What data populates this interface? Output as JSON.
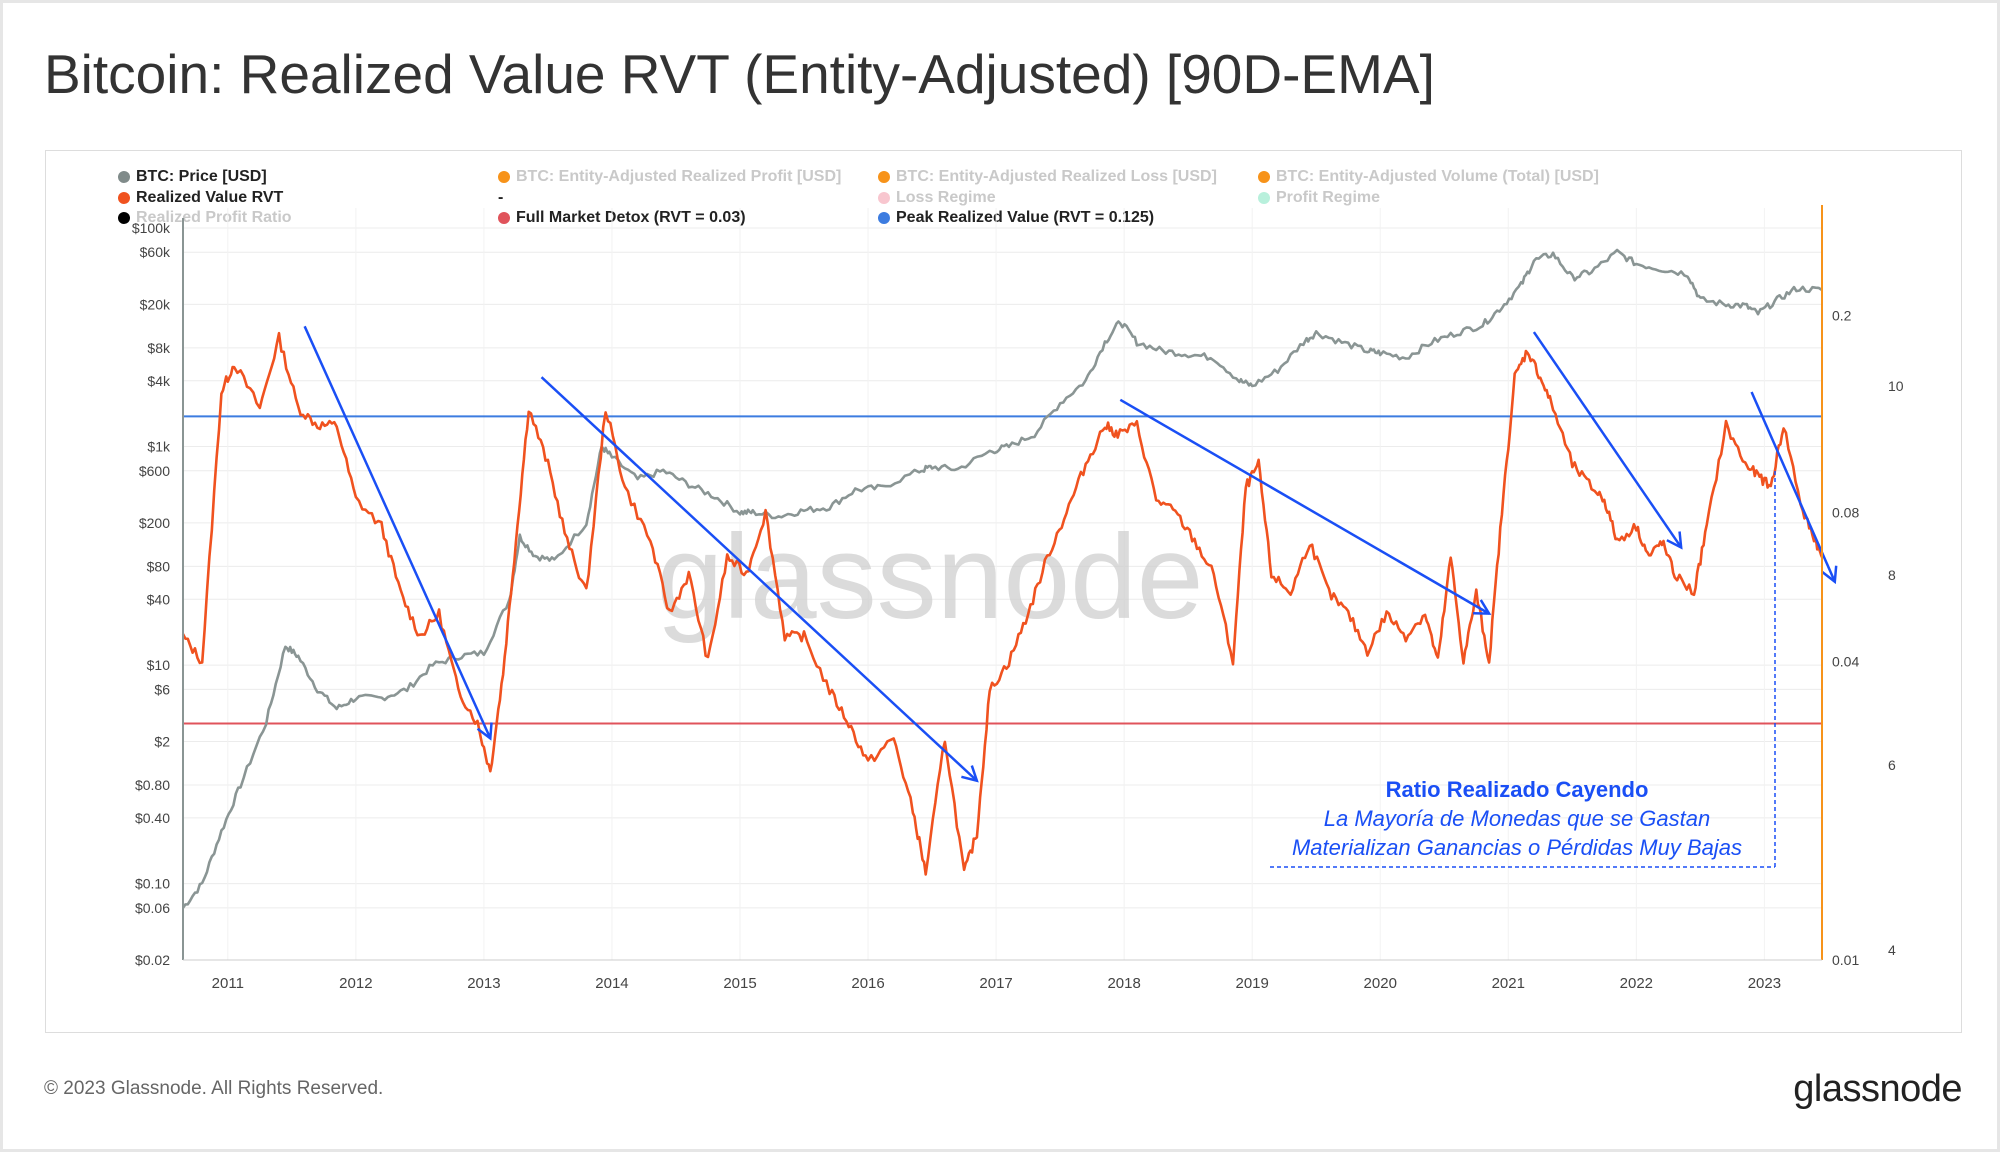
{
  "title": "Bitcoin: Realized Value RVT (Entity-Adjusted) [90D-EMA]",
  "legend": [
    {
      "label": "BTC: Price [USD]",
      "color": "#808b8a",
      "faded": false
    },
    {
      "label": "BTC: Entity-Adjusted Realized Profit [USD]",
      "color": "#f7931a",
      "faded": true
    },
    {
      "label": "BTC: Entity-Adjusted Realized Loss [USD]",
      "color": "#f7931a",
      "faded": true
    },
    {
      "label": "BTC: Entity-Adjusted Volume (Total) [USD]",
      "color": "#f7931a",
      "faded": true
    },
    {
      "label": "Realized Value RVT",
      "color": "#f0521f",
      "faded": false
    },
    {
      "label": "-",
      "color": "",
      "faded": false
    },
    {
      "label": "Loss Regime",
      "color": "#f8c6cf",
      "faded": true
    },
    {
      "label": "Profit Regime",
      "color": "#b8f0dc",
      "faded": true
    },
    {
      "label": "Realized Profit Ratio",
      "color": "#000000",
      "faded": true
    },
    {
      "label": "Full Market Detox (RVT = 0.03)",
      "color": "#e0535b",
      "faded": false
    },
    {
      "label": "Peak Realized Value (RVT = 0.125)",
      "color": "#3c7ce0",
      "faded": false
    }
  ],
  "watermark": "glassnode",
  "annotation": {
    "heading": "Ratio Realizado Cayendo",
    "line1": "La Mayoría de Monedas que se Gastan",
    "line2": "Materializan Ganancias o Pérdidas Muy Bajas"
  },
  "footer": {
    "copyright": "© 2023 Glassnode. All Rights Reserved.",
    "logo": "glassnode"
  },
  "colors": {
    "price": "#8a9594",
    "rvt": "#f0521f",
    "detox": "#e0535b",
    "peak": "#3c7ce0",
    "arrow": "#1a4ff5",
    "right_axis": "#f7931a",
    "annotation": "#1a4ff5"
  },
  "chart_data": {
    "type": "line",
    "x_ticks": [
      "2011",
      "2012",
      "2013",
      "2014",
      "2015",
      "2016",
      "2017",
      "2018",
      "2019",
      "2020",
      "2021",
      "2022",
      "2023"
    ],
    "x_range": [
      2010.65,
      2023.45
    ],
    "left_axis": {
      "label": "BTC: Price [USD]",
      "scale": "log",
      "range": [
        0.02,
        100000
      ],
      "ticks": [
        "$100k",
        "$60k",
        "$20k",
        "$8k",
        "$4k",
        "$1k",
        "$600",
        "$200",
        "$80",
        "$40",
        "$10",
        "$6",
        "$2",
        "$0.80",
        "$0.40",
        "$0.10",
        "$0.06",
        "$0.02"
      ],
      "tick_values": [
        100000,
        60000,
        20000,
        8000,
        4000,
        1000,
        600,
        200,
        80,
        40,
        10,
        6,
        2,
        0.8,
        0.4,
        0.1,
        0.06,
        0.02
      ]
    },
    "right_axis_rvt": {
      "label": "Realized Value RVT",
      "scale": "log",
      "range": [
        0.01,
        0.3
      ],
      "ticks": [
        "0.2",
        "0.08",
        "0.04",
        "0.01"
      ],
      "tick_values": [
        0.2,
        0.08,
        0.04,
        0.01
      ]
    },
    "right_axis_volume": {
      "ticks": [
        "10",
        "8",
        "6",
        "4"
      ]
    },
    "reference_lines": [
      {
        "name": "Full Market Detox",
        "rvt": 0.03
      },
      {
        "name": "Peak Realized Value",
        "rvt": 0.125
      }
    ],
    "series": [
      {
        "name": "BTC: Price [USD]",
        "x": [
          2010.65,
          2010.8,
          2010.95,
          2011.1,
          2011.3,
          2011.45,
          2011.55,
          2011.7,
          2011.85,
          2012.0,
          2012.2,
          2012.4,
          2012.6,
          2012.8,
          2013.0,
          2013.2,
          2013.28,
          2013.4,
          2013.55,
          2013.8,
          2013.92,
          2014.0,
          2014.2,
          2014.4,
          2014.6,
          2014.8,
          2015.0,
          2015.1,
          2015.3,
          2015.5,
          2015.7,
          2015.9,
          2016.1,
          2016.4,
          2016.5,
          2016.7,
          2016.95,
          2017.1,
          2017.3,
          2017.5,
          2017.7,
          2017.85,
          2017.97,
          2018.1,
          2018.3,
          2018.5,
          2018.7,
          2018.9,
          2019.0,
          2019.2,
          2019.4,
          2019.5,
          2019.7,
          2019.9,
          2020.0,
          2020.2,
          2020.4,
          2020.6,
          2020.8,
          2020.95,
          2021.1,
          2021.2,
          2021.35,
          2021.5,
          2021.65,
          2021.85,
          2022.0,
          2022.2,
          2022.4,
          2022.5,
          2022.7,
          2022.85,
          2022.95,
          2023.1,
          2023.25,
          2023.45
        ],
        "values": [
          0.06,
          0.1,
          0.3,
          0.8,
          3,
          15,
          12,
          6,
          4,
          5,
          5,
          6,
          10,
          12,
          13,
          40,
          150,
          100,
          90,
          200,
          1000,
          800,
          500,
          600,
          450,
          350,
          250,
          250,
          230,
          260,
          280,
          400,
          420,
          600,
          650,
          620,
          900,
          1000,
          1300,
          2500,
          4000,
          9000,
          14000,
          9000,
          7500,
          7000,
          6500,
          4000,
          3600,
          5000,
          9000,
          11000,
          9000,
          7500,
          7200,
          6500,
          9000,
          11000,
          13000,
          19000,
          30000,
          50000,
          58000,
          35000,
          40000,
          60000,
          47000,
          42000,
          38000,
          22000,
          20000,
          19500,
          16500,
          22000,
          28000,
          27000
        ]
      },
      {
        "name": "Realized Value RVT",
        "x": [
          2010.65,
          2010.8,
          2010.95,
          2011.05,
          2011.25,
          2011.4,
          2011.55,
          2011.7,
          2011.85,
          2012.0,
          2012.2,
          2012.35,
          2012.5,
          2012.65,
          2012.8,
          2012.95,
          2013.05,
          2013.15,
          2013.25,
          2013.35,
          2013.5,
          2013.65,
          2013.8,
          2013.95,
          2014.1,
          2014.3,
          2014.45,
          2014.6,
          2014.75,
          2014.9,
          2015.05,
          2015.2,
          2015.35,
          2015.5,
          2015.7,
          2015.85,
          2016.0,
          2016.2,
          2016.35,
          2016.45,
          2016.6,
          2016.75,
          2016.85,
          2016.95,
          2017.1,
          2017.25,
          2017.4,
          2017.55,
          2017.7,
          2017.85,
          2017.95,
          2018.1,
          2018.25,
          2018.4,
          2018.55,
          2018.7,
          2018.85,
          2018.95,
          2019.05,
          2019.15,
          2019.3,
          2019.45,
          2019.6,
          2019.75,
          2019.9,
          2020.05,
          2020.2,
          2020.35,
          2020.45,
          2020.55,
          2020.65,
          2020.75,
          2020.85,
          2020.95,
          2021.05,
          2021.15,
          2021.25,
          2021.35,
          2021.5,
          2021.65,
          2021.75,
          2021.85,
          2022.0,
          2022.1,
          2022.2,
          2022.3,
          2022.45,
          2022.55,
          2022.7,
          2022.85,
          2022.95,
          2023.05,
          2023.15,
          2023.3,
          2023.4,
          2023.45
        ],
        "values": [
          0.045,
          0.04,
          0.14,
          0.16,
          0.13,
          0.18,
          0.13,
          0.12,
          0.12,
          0.085,
          0.075,
          0.055,
          0.045,
          0.05,
          0.035,
          0.03,
          0.024,
          0.038,
          0.07,
          0.13,
          0.1,
          0.07,
          0.055,
          0.13,
          0.09,
          0.07,
          0.05,
          0.06,
          0.04,
          0.065,
          0.06,
          0.08,
          0.045,
          0.045,
          0.035,
          0.03,
          0.025,
          0.028,
          0.02,
          0.015,
          0.028,
          0.015,
          0.018,
          0.035,
          0.04,
          0.05,
          0.065,
          0.08,
          0.1,
          0.12,
          0.115,
          0.12,
          0.085,
          0.08,
          0.07,
          0.06,
          0.04,
          0.09,
          0.1,
          0.06,
          0.055,
          0.07,
          0.055,
          0.05,
          0.042,
          0.05,
          0.045,
          0.05,
          0.04,
          0.065,
          0.04,
          0.055,
          0.04,
          0.08,
          0.15,
          0.17,
          0.15,
          0.13,
          0.1,
          0.09,
          0.085,
          0.07,
          0.075,
          0.065,
          0.07,
          0.06,
          0.055,
          0.075,
          0.12,
          0.1,
          0.095,
          0.09,
          0.12,
          0.08,
          0.07,
          0.065
        ]
      }
    ],
    "arrows": [
      {
        "from": [
          2011.6,
          0.19
        ],
        "to": [
          2013.05,
          0.028
        ]
      },
      {
        "from": [
          2013.45,
          0.15
        ],
        "to": [
          2016.85,
          0.023
        ]
      },
      {
        "from": [
          2017.97,
          0.135
        ],
        "to": [
          2020.85,
          0.05
        ]
      },
      {
        "from": [
          2021.2,
          0.185
        ],
        "to": [
          2022.35,
          0.068
        ]
      },
      {
        "from": [
          2022.9,
          0.14
        ],
        "to": [
          2023.55,
          0.058
        ]
      }
    ]
  }
}
